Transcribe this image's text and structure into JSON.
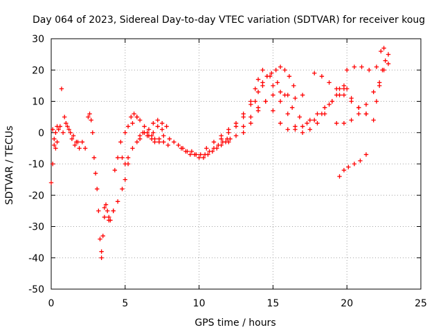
{
  "chart_data": {
    "type": "scatter",
    "title": "Day 064 of 2023, Sidereal Day-to-day VTEC variation (SDTVAR) for receiver koug",
    "xlabel": "GPS time / hours",
    "ylabel": "SDTVAR / TECUs",
    "xlim": [
      0,
      25
    ],
    "ylim": [
      -50,
      30
    ],
    "xticks": [
      0,
      5,
      10,
      15,
      20,
      25
    ],
    "yticks": [
      -50,
      -40,
      -30,
      -20,
      -10,
      0,
      10,
      20,
      30
    ],
    "grid": true,
    "marker": "+",
    "color": "#ff0000",
    "series": [
      {
        "name": "s1",
        "x": [
          0.0,
          0.1,
          0.2,
          0.3,
          0.4,
          0.5
        ],
        "y": [
          -16,
          -10,
          -4,
          0,
          2,
          1
        ]
      },
      {
        "name": "s2",
        "x": [
          0.1,
          0.2,
          0.3,
          0.4
        ],
        "y": [
          1,
          -2,
          -5,
          -3
        ]
      },
      {
        "name": "s3",
        "x": [
          0.7
        ],
        "y": [
          14
        ]
      },
      {
        "name": "s4",
        "x": [
          0.6,
          0.8,
          1.0,
          1.2,
          1.4,
          1.6,
          1.8
        ],
        "y": [
          2,
          0,
          3,
          1,
          -2,
          -4,
          -3
        ]
      },
      {
        "name": "s5",
        "x": [
          0.9,
          1.1,
          1.3
        ],
        "y": [
          5,
          2,
          0
        ]
      },
      {
        "name": "s6",
        "x": [
          1.5,
          1.7,
          1.9
        ],
        "y": [
          -1,
          -3,
          -5
        ]
      },
      {
        "name": "s7",
        "x": [
          2.1,
          2.3
        ],
        "y": [
          -3,
          -5
        ]
      },
      {
        "name": "s8",
        "x": [
          2.5,
          2.6,
          2.7,
          2.8,
          2.9,
          3.0,
          3.1,
          3.2,
          3.3,
          3.4
        ],
        "y": [
          5,
          6,
          4,
          0,
          -8,
          -13,
          -18,
          -25,
          -34,
          -40
        ]
      },
      {
        "name": "s9",
        "x": [
          3.4,
          3.5,
          3.6,
          3.7,
          3.8,
          3.9,
          4.0,
          4.2
        ],
        "y": [
          -38,
          -33,
          -27,
          -23,
          -25,
          -27,
          -28,
          -25
        ]
      },
      {
        "name": "s10",
        "x": [
          3.6,
          3.9,
          4.2,
          4.5,
          4.8,
          5.0,
          5.2
        ],
        "y": [
          -24,
          -28,
          -25,
          -22,
          -18,
          -15,
          -10
        ]
      },
      {
        "name": "s11",
        "x": [
          4.3,
          4.5,
          4.7,
          5.0,
          5.2,
          5.4,
          5.6,
          5.8
        ],
        "y": [
          -12,
          -8,
          -3,
          0,
          2,
          5,
          6,
          5
        ]
      },
      {
        "name": "s12",
        "x": [
          4.8,
          5.0,
          5.2,
          5.5,
          5.8,
          6.0,
          6.2,
          6.5,
          6.8,
          7.0,
          7.3,
          7.6
        ],
        "y": [
          -8,
          -10,
          -8,
          -5,
          -3,
          -1,
          0,
          -1,
          -2,
          -3,
          -2,
          -1
        ]
      },
      {
        "name": "s13",
        "x": [
          5.5,
          5.8,
          6.0,
          6.3,
          6.5,
          6.8,
          7.0,
          7.3,
          7.6,
          7.9
        ],
        "y": [
          3,
          5,
          4,
          2,
          0,
          -1,
          -2,
          -3,
          -3,
          -4
        ]
      },
      {
        "name": "s14",
        "x": [
          6.0,
          6.3,
          6.6,
          6.9,
          7.2,
          7.5,
          7.8
        ],
        "y": [
          -2,
          0,
          1,
          3,
          4,
          3,
          2
        ]
      },
      {
        "name": "s15",
        "x": [
          6.6,
          6.9,
          7.2,
          7.5
        ],
        "y": [
          -1,
          0,
          2,
          1
        ]
      },
      {
        "name": "s16",
        "x": [
          8.0,
          8.3,
          8.6,
          8.9,
          9.2,
          9.5,
          9.8,
          10.1,
          10.4,
          10.7,
          11.0,
          11.3,
          11.6,
          11.9
        ],
        "y": [
          -2,
          -3,
          -4,
          -5,
          -6,
          -6,
          -7,
          -7,
          -7,
          -6,
          -5,
          -4,
          -3,
          -2
        ]
      },
      {
        "name": "s17",
        "x": [
          8.8,
          9.1,
          9.4,
          9.7,
          10.0,
          10.3,
          10.6,
          10.9,
          11.2,
          11.5,
          11.8,
          12.1
        ],
        "y": [
          -5,
          -6,
          -7,
          -7,
          -8,
          -8,
          -7,
          -6,
          -5,
          -4,
          -3,
          -2
        ]
      },
      {
        "name": "s18",
        "x": [
          10.5,
          11.0,
          11.5,
          12.0,
          12.5,
          13.0,
          13.5,
          13.8,
          14.0,
          14.3,
          14.6,
          15.0,
          15.5,
          16.0,
          16.5,
          17.0
        ],
        "y": [
          -5,
          -3,
          -1,
          1,
          3,
          6,
          10,
          14,
          17,
          20,
          18,
          15,
          13,
          12,
          11,
          12
        ]
      },
      {
        "name": "s19",
        "x": [
          11.5,
          12.0,
          12.5,
          13.0,
          13.5,
          14.0,
          14.3,
          14.6,
          14.9,
          15.2,
          15.5,
          15.8,
          16.1,
          16.4
        ],
        "y": [
          -2,
          0,
          2,
          5,
          9,
          13,
          16,
          18,
          19,
          20,
          21,
          20,
          18,
          15
        ]
      },
      {
        "name": "s20",
        "x": [
          12.0,
          12.5,
          13.0,
          13.5,
          14.0,
          14.5,
          15.0,
          15.5,
          16.0,
          16.5,
          17.0,
          17.5,
          18.0,
          18.5,
          19.0,
          19.5,
          20.0
        ],
        "y": [
          -3,
          -1,
          2,
          5,
          8,
          10,
          7,
          3,
          1,
          1,
          2,
          4,
          6,
          8,
          10,
          12,
          14
        ]
      },
      {
        "name": "s21",
        "x": [
          13.0,
          13.5,
          14.0,
          14.5,
          15.0,
          15.5,
          16.0,
          16.5,
          17.0,
          17.5,
          18.0,
          18.5,
          19.0,
          19.5,
          19.8
        ],
        "y": [
          0,
          3,
          7,
          10,
          12,
          10,
          6,
          2,
          0,
          1,
          3,
          6,
          10,
          14,
          15
        ]
      },
      {
        "name": "s22",
        "x": [
          13.8,
          14.3,
          14.8,
          15.3,
          15.8,
          16.3,
          16.8,
          17.3,
          17.8,
          18.3,
          18.8,
          19.3,
          19.8,
          20.3,
          20.8,
          21.3,
          21.8
        ],
        "y": [
          10,
          15,
          18,
          16,
          12,
          8,
          5,
          3,
          4,
          6,
          9,
          12,
          14,
          11,
          8,
          6,
          4
        ]
      },
      {
        "name": "s23",
        "x": [
          17.8,
          18.3,
          18.8,
          19.3,
          19.8,
          20.3,
          20.8,
          21.3
        ],
        "y": [
          19,
          18,
          16,
          14,
          12,
          10,
          8,
          6
        ]
      },
      {
        "name": "s24",
        "x": [
          19.3,
          19.8,
          20.3,
          20.8,
          21.3,
          21.8,
          22.2
        ],
        "y": [
          3,
          3,
          4,
          6,
          9,
          13,
          16
        ]
      },
      {
        "name": "s25",
        "x": [
          20.0,
          20.5,
          21.0,
          21.5,
          22.0,
          22.5,
          22.8
        ],
        "y": [
          20,
          21,
          21,
          20,
          21,
          20,
          22
        ]
      },
      {
        "name": "s26",
        "x": [
          22.0,
          22.2,
          22.4,
          22.6,
          22.8,
          22.5,
          22.3
        ],
        "y": [
          10,
          15,
          20,
          23,
          25,
          27,
          26
        ]
      },
      {
        "name": "s27",
        "x": [
          19.5,
          19.8,
          20.1,
          20.5,
          20.9,
          21.3
        ],
        "y": [
          -14,
          -12,
          -11,
          -10,
          -9,
          -7
        ]
      }
    ]
  }
}
